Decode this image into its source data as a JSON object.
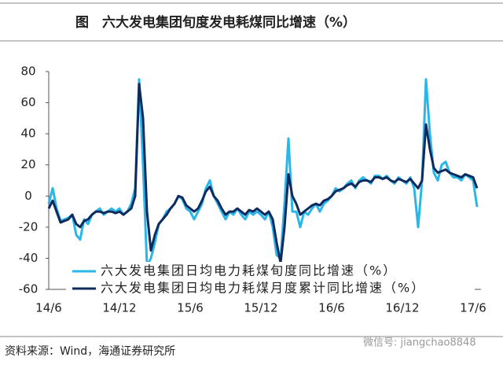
{
  "chart_data": {
    "type": "line",
    "title": "图　六大发电集团旬度发电耗煤同比增速（%）",
    "source": "资料来源：Wind，海通证券研究所",
    "watermark": "微信号: jiangchao8848",
    "categories": [
      "14/6",
      null,
      null,
      null,
      null,
      null,
      null,
      null,
      null,
      null,
      null,
      null,
      null,
      null,
      null,
      null,
      null,
      null,
      "14/12",
      null,
      null,
      null,
      null,
      null,
      null,
      null,
      null,
      null,
      null,
      null,
      null,
      null,
      null,
      null,
      null,
      null,
      "15/6",
      null,
      null,
      null,
      null,
      null,
      null,
      null,
      null,
      null,
      null,
      null,
      null,
      null,
      null,
      null,
      null,
      null,
      "15/12",
      null,
      null,
      null,
      null,
      null,
      null,
      null,
      null,
      null,
      null,
      null,
      null,
      null,
      null,
      null,
      null,
      null,
      "16/6",
      null,
      null,
      null,
      null,
      null,
      null,
      null,
      null,
      null,
      null,
      null,
      null,
      null,
      null,
      null,
      null,
      null,
      "16/12",
      null,
      null,
      null,
      null,
      null,
      null,
      null,
      null,
      null,
      null,
      null,
      null,
      null,
      null,
      null,
      null,
      null,
      "17/6",
      null
    ],
    "series": [
      {
        "name": "六大发电集团日均电力耗煤旬度同比增速（%）",
        "color": "#29b6e8",
        "values": [
          -5,
          5,
          -8,
          -16,
          -15,
          -14,
          -12,
          -25,
          -28,
          -15,
          -18,
          -12,
          -10,
          -8,
          -12,
          -10,
          -8,
          -10,
          -8,
          -12,
          -10,
          -5,
          5,
          75,
          20,
          -45,
          -40,
          -30,
          -18,
          -15,
          -10,
          -8,
          -5,
          0,
          -2,
          -8,
          -10,
          -15,
          -10,
          -5,
          5,
          10,
          0,
          -5,
          -10,
          -15,
          -10,
          -12,
          -8,
          -12,
          -15,
          -10,
          -12,
          -10,
          -12,
          -15,
          -10,
          -20,
          -38,
          -40,
          -5,
          37,
          -10,
          -10,
          -20,
          -10,
          -12,
          -8,
          -5,
          -10,
          -5,
          -3,
          0,
          5,
          3,
          5,
          8,
          10,
          5,
          10,
          12,
          10,
          8,
          13,
          13,
          11,
          13,
          10,
          8,
          12,
          10,
          8,
          12,
          5,
          -20,
          10,
          75,
          40,
          15,
          10,
          20,
          22,
          15,
          12,
          12,
          10,
          14,
          12,
          10,
          -7
        ]
      },
      {
        "name": "六大发电集团日均电力耗煤月度累计同比增速（%）",
        "color": "#0e2a5e",
        "values": [
          -8,
          -3,
          -10,
          -17,
          -16,
          -15,
          -12,
          -18,
          -20,
          -16,
          -15,
          -12,
          -10,
          -10,
          -11,
          -10,
          -10,
          -11,
          -10,
          -12,
          -10,
          -8,
          0,
          72,
          50,
          -10,
          -35,
          -25,
          -18,
          -15,
          -12,
          -8,
          -5,
          0,
          -1,
          -6,
          -8,
          -10,
          -8,
          -3,
          3,
          6,
          0,
          -3,
          -8,
          -12,
          -10,
          -10,
          -8,
          -10,
          -12,
          -9,
          -10,
          -8,
          -10,
          -12,
          -10,
          -15,
          -30,
          -43,
          -20,
          14,
          0,
          -5,
          -12,
          -10,
          -8,
          -6,
          -5,
          -6,
          -3,
          -2,
          0,
          3,
          4,
          5,
          7,
          8,
          6,
          9,
          10,
          10,
          9,
          12,
          12,
          11,
          12,
          10,
          9,
          11,
          10,
          9,
          11,
          8,
          5,
          10,
          46,
          30,
          18,
          15,
          16,
          17,
          15,
          14,
          13,
          12,
          14,
          13,
          12,
          5
        ]
      }
    ],
    "ylim": [
      -60,
      80
    ],
    "yticks": [
      -60,
      -40,
      -20,
      0,
      20,
      40,
      60,
      80
    ],
    "grid": false,
    "legend": "lower left"
  }
}
